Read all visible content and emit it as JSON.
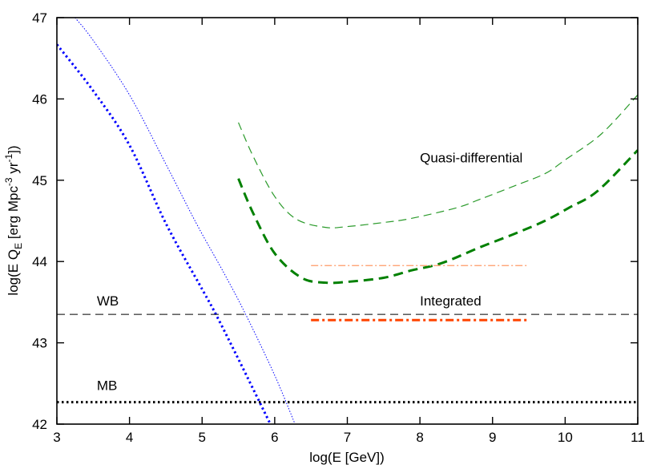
{
  "chart_data": {
    "type": "line",
    "title": "",
    "xlabel": "log(E [GeV])",
    "ylabel": "log(E Q_E [erg Mpc^-3 yr^-1])",
    "ylabel_parts": {
      "main": "log(E Q",
      "sub": "E",
      "mid": " [erg Mpc",
      "sup1": "-3",
      "mid2": " yr",
      "sup2": "-1",
      "end": "])"
    },
    "xlim": [
      3,
      11
    ],
    "ylim": [
      42,
      47
    ],
    "xticks": [
      3,
      4,
      5,
      6,
      7,
      8,
      9,
      10,
      11
    ],
    "yticks": [
      42,
      43,
      44,
      45,
      46,
      47
    ],
    "grid": false,
    "legend": null,
    "annotations": [
      {
        "text": "Quasi-differential",
        "x": 8.0,
        "y": 45.22
      },
      {
        "text": "Integrated",
        "x": 8.0,
        "y": 43.46
      },
      {
        "text": "WB",
        "x": 3.55,
        "y": 43.46
      },
      {
        "text": "MB",
        "x": 3.55,
        "y": 42.42
      }
    ],
    "series": [
      {
        "name": "Blue thick dotted",
        "color": "#0000ff",
        "style": "dotted",
        "width": 3,
        "x": [
          3.0,
          3.5,
          4.0,
          4.5,
          5.0,
          5.19,
          5.5,
          5.94
        ],
        "y": [
          46.67,
          46.1,
          45.43,
          44.47,
          43.66,
          43.35,
          42.8,
          42.0
        ]
      },
      {
        "name": "Blue thin dotted",
        "color": "#0000ff",
        "style": "dotted",
        "width": 1,
        "x": [
          3.25,
          3.5,
          4.0,
          4.5,
          4.92,
          5.3,
          5.6,
          6.0,
          6.28
        ],
        "y": [
          47.0,
          46.72,
          46.05,
          45.2,
          44.47,
          43.86,
          43.35,
          42.6,
          42.0
        ]
      },
      {
        "name": "Quasi-differential (thin)",
        "color": "#2a9a2a",
        "style": "dashed",
        "width": 1.2,
        "x": [
          5.5,
          5.7,
          6.0,
          6.3,
          6.7,
          7.0,
          7.5,
          7.88,
          8.5,
          8.84,
          9.3,
          9.72,
          10.0,
          10.5,
          11.0
        ],
        "y": [
          45.71,
          45.3,
          44.8,
          44.52,
          44.42,
          44.43,
          44.48,
          44.53,
          44.66,
          44.77,
          44.93,
          45.08,
          45.25,
          45.57,
          46.05
        ]
      },
      {
        "name": "Quasi-differential (thick)",
        "color": "#008000",
        "style": "dashed",
        "width": 3,
        "x": [
          5.5,
          5.7,
          6.0,
          6.37,
          6.7,
          7.0,
          7.5,
          7.88,
          8.3,
          8.84,
          9.3,
          9.72,
          10.05,
          10.45,
          11.0
        ],
        "y": [
          45.02,
          44.6,
          44.1,
          43.8,
          43.74,
          43.75,
          43.8,
          43.89,
          43.98,
          44.18,
          44.34,
          44.5,
          44.66,
          44.87,
          45.37
        ]
      },
      {
        "name": "Quasi-differential bound (orange)",
        "color": "#ff9966",
        "style": "dashdot",
        "width": 1.2,
        "x": [
          6.5,
          9.5
        ],
        "y": [
          43.95,
          43.95
        ]
      },
      {
        "name": "Integrated bound (orange)",
        "color": "#ff4400",
        "style": "dashdot",
        "width": 3,
        "x": [
          6.5,
          9.5
        ],
        "y": [
          43.28,
          43.28
        ]
      },
      {
        "name": "WB",
        "color": "#000000",
        "style": "dashed",
        "width": 1,
        "x": [
          3,
          11
        ],
        "y": [
          43.35,
          43.35
        ]
      },
      {
        "name": "MB",
        "color": "#000000",
        "style": "dotted",
        "width": 3,
        "x": [
          3,
          11
        ],
        "y": [
          42.27,
          42.27
        ]
      }
    ]
  }
}
